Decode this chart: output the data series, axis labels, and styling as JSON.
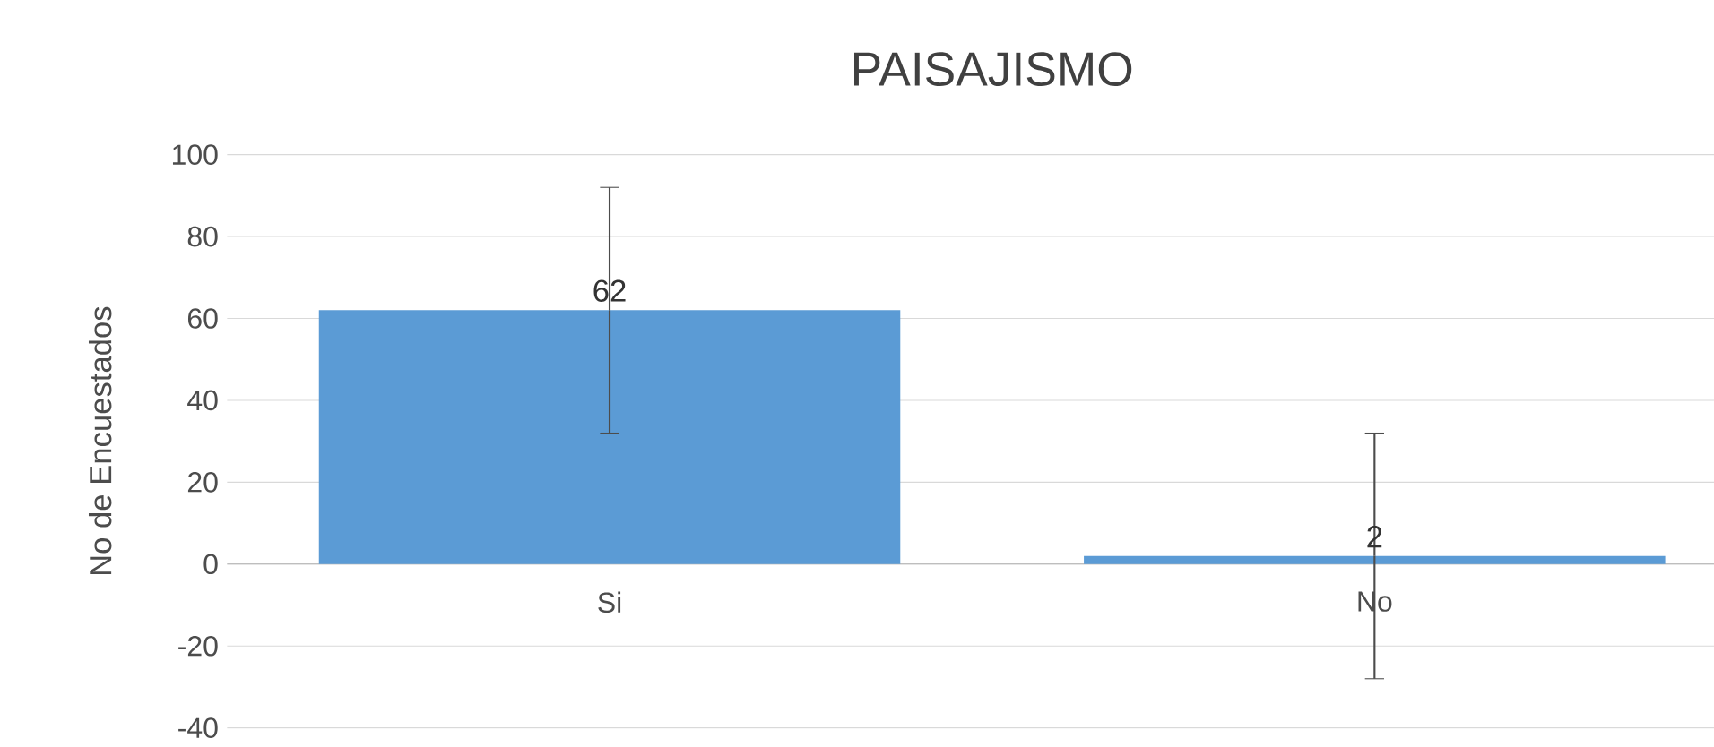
{
  "chart_data": {
    "type": "bar",
    "title": "PAISAJISMO",
    "ylabel": "No de Encuestados",
    "categories": [
      "Si",
      "No"
    ],
    "values": [
      62,
      2
    ],
    "color": "#5b9bd5",
    "errors": [
      30,
      30
    ],
    "ylim": [
      -40,
      100
    ],
    "yticks": [
      -40,
      -20,
      0,
      20,
      40,
      60,
      80,
      100
    ],
    "grid": "y",
    "data_labels": true
  }
}
